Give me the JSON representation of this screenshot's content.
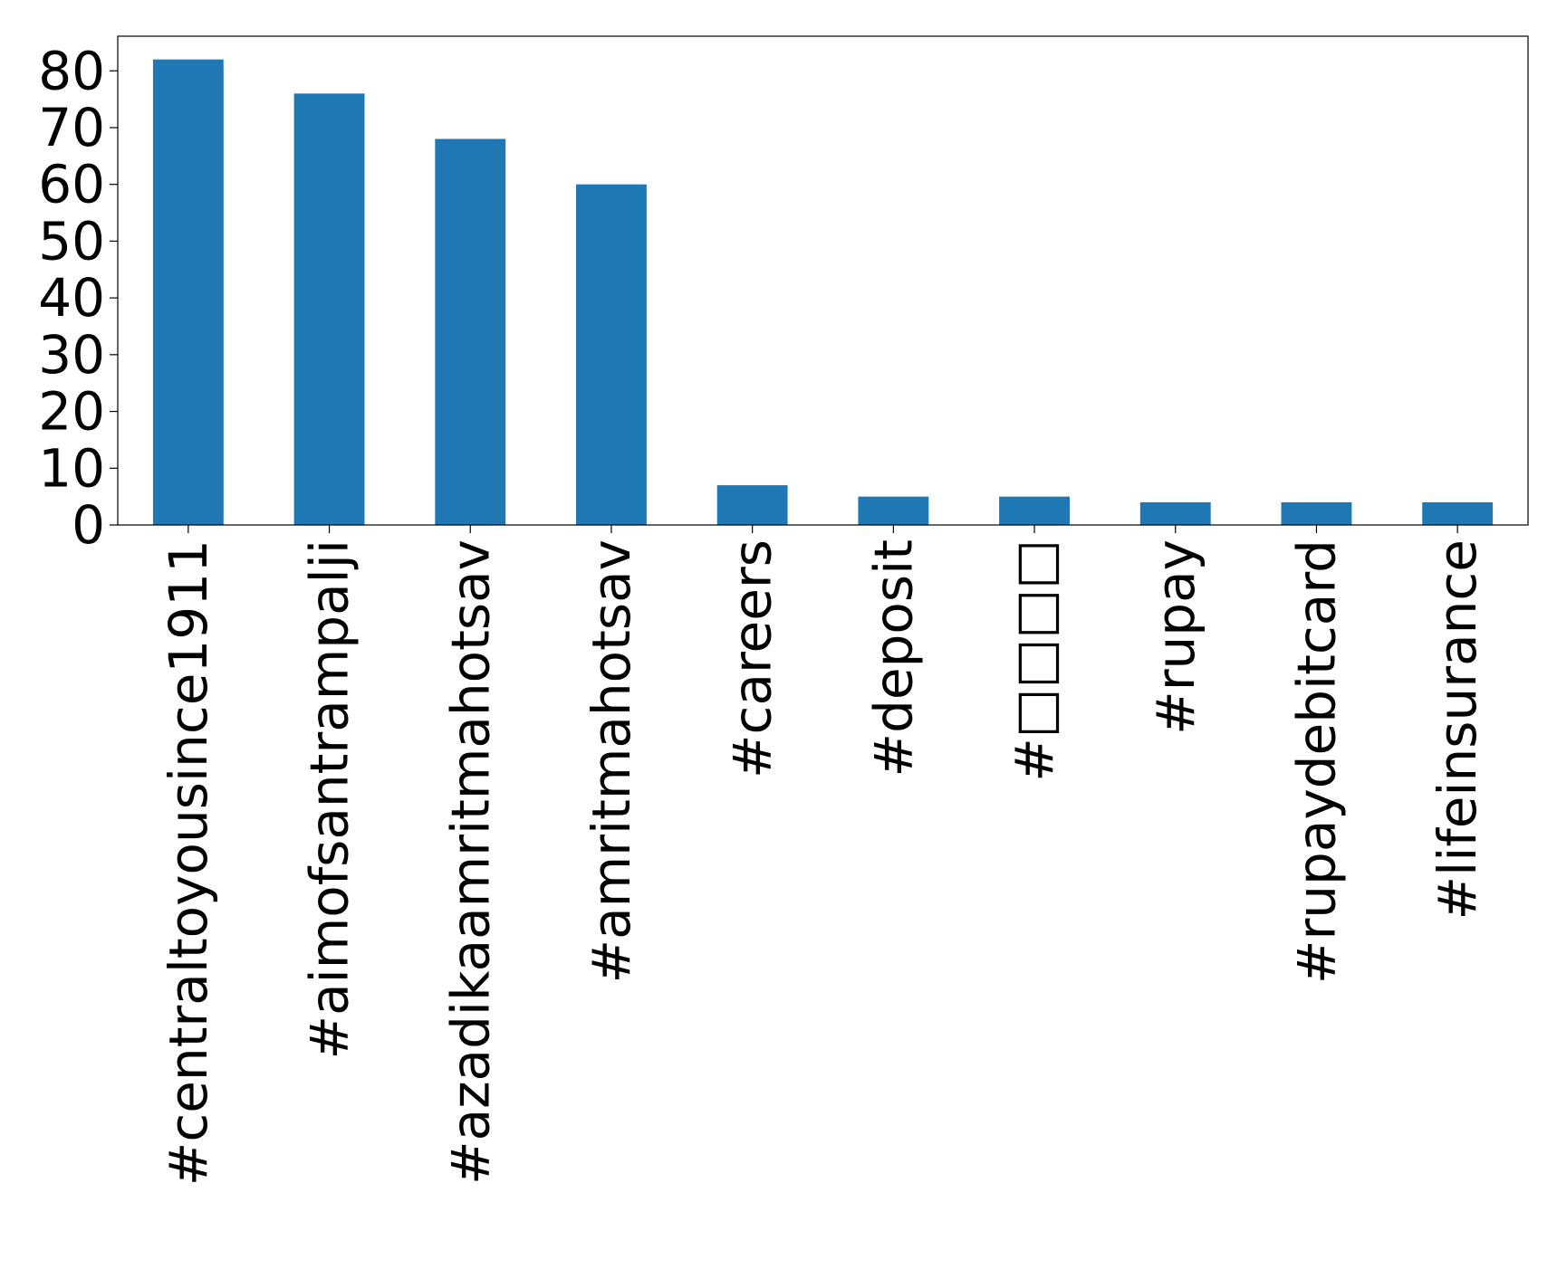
{
  "chart_data": {
    "type": "bar",
    "title": "",
    "xlabel": "",
    "ylabel": "",
    "categories": [
      "#centraltoyousince1911",
      "#aimofsantrampalji",
      "#azadikaamritmahotsav",
      "#amritmahotsav",
      "#careers",
      "#deposit",
      "#□□□□",
      "#rupay",
      "#rupaydebitcard",
      "#lifeinsurance"
    ],
    "values": [
      82,
      76,
      68,
      60,
      7,
      5,
      5,
      4,
      4,
      4
    ],
    "ylim": [
      0,
      86.1
    ],
    "yticks": [
      0,
      10,
      20,
      30,
      40,
      50,
      60,
      70,
      80
    ],
    "grid": false,
    "legend": "none",
    "bar_color": "#1f77b4"
  }
}
